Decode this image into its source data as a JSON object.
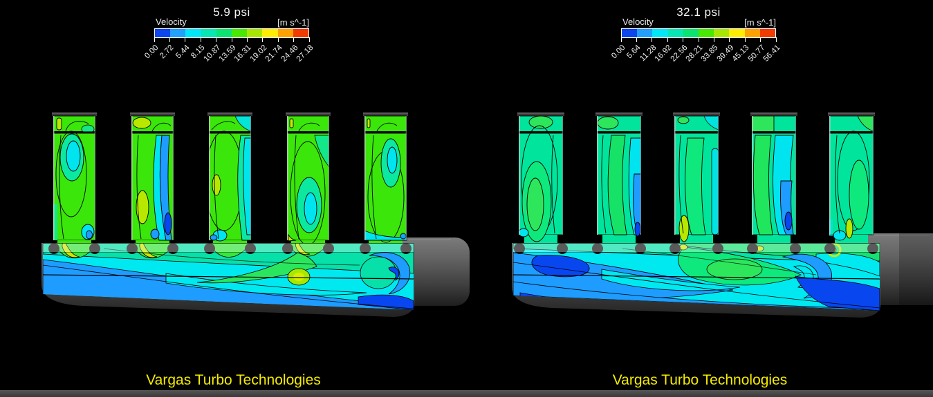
{
  "colorbar_colors": [
    "#0b46ee",
    "#22a0fb",
    "#00e7f8",
    "#06e7b3",
    "#0ae571",
    "#49e800",
    "#a8e800",
    "#ffee00",
    "#ffa200",
    "#f23b00"
  ],
  "views": [
    {
      "legend": {
        "title": "5.9 psi",
        "variable": "Velocity",
        "units": "[m s^-1]",
        "ticks": [
          "0.00",
          "2.72",
          "5.44",
          "8.15",
          "10.87",
          "13.59",
          "16.31",
          "19.02",
          "21.74",
          "24.46",
          "27.18"
        ]
      },
      "watermark": "Vargas Turbo Technologies"
    },
    {
      "legend": {
        "title": "32.1 psi",
        "variable": "Velocity",
        "units": "[m s^-1]",
        "ticks": [
          "0.00",
          "5.64",
          "11.28",
          "16.92",
          "22.56",
          "28.21",
          "33.85",
          "39.49",
          "45.13",
          "50.77",
          "56.41"
        ]
      },
      "watermark": "Vargas Turbo Technologies"
    }
  ],
  "chart_data": [
    {
      "type": "heatmap",
      "title": "5.9 psi",
      "variable": "Velocity",
      "units": "m s^-1",
      "legend_min": 0.0,
      "legend_max": 27.18,
      "legend_ticks": [
        0.0,
        2.72,
        5.44,
        8.15,
        10.87,
        13.59,
        16.31,
        19.02,
        21.74,
        24.46,
        27.18
      ],
      "colormap": [
        "#0b46ee",
        "#22a0fb",
        "#00e7f8",
        "#06e7b3",
        "#0ae571",
        "#49e800",
        "#a8e800",
        "#ffee00",
        "#ffa200",
        "#f23b00"
      ],
      "legend_position": "top",
      "annotation": "Vargas Turbo Technologies",
      "description": "Velocity contour plane through intake manifold: five vertical runners over a plenum log; runners mostly green (13-19 m/s) with cyan/teal cores and blue streaks; plenum mostly cyan/sky-blue (3-8 m/s) with yellow-green pocket and deep blue recirculation at right"
    },
    {
      "type": "heatmap",
      "title": "32.1 psi",
      "variable": "Velocity",
      "units": "m s^-1",
      "legend_min": 0.0,
      "legend_max": 56.41,
      "legend_ticks": [
        0.0,
        5.64,
        11.28,
        16.92,
        22.56,
        28.21,
        33.85,
        39.49,
        45.13,
        50.77,
        56.41
      ],
      "colormap": [
        "#0b46ee",
        "#22a0fb",
        "#00e7f8",
        "#06e7b3",
        "#0ae571",
        "#49e800",
        "#a8e800",
        "#ffee00",
        "#ffa200",
        "#f23b00"
      ],
      "legend_position": "top",
      "annotation": "Vargas Turbo Technologies",
      "description": "Velocity contour plane through intake manifold at higher boost: runners teal/green with cyan-blue streaks; plenum dominated by sky-blue and deep blue with green swirl right of center and strong blue recirculation vortex at right end"
    }
  ]
}
